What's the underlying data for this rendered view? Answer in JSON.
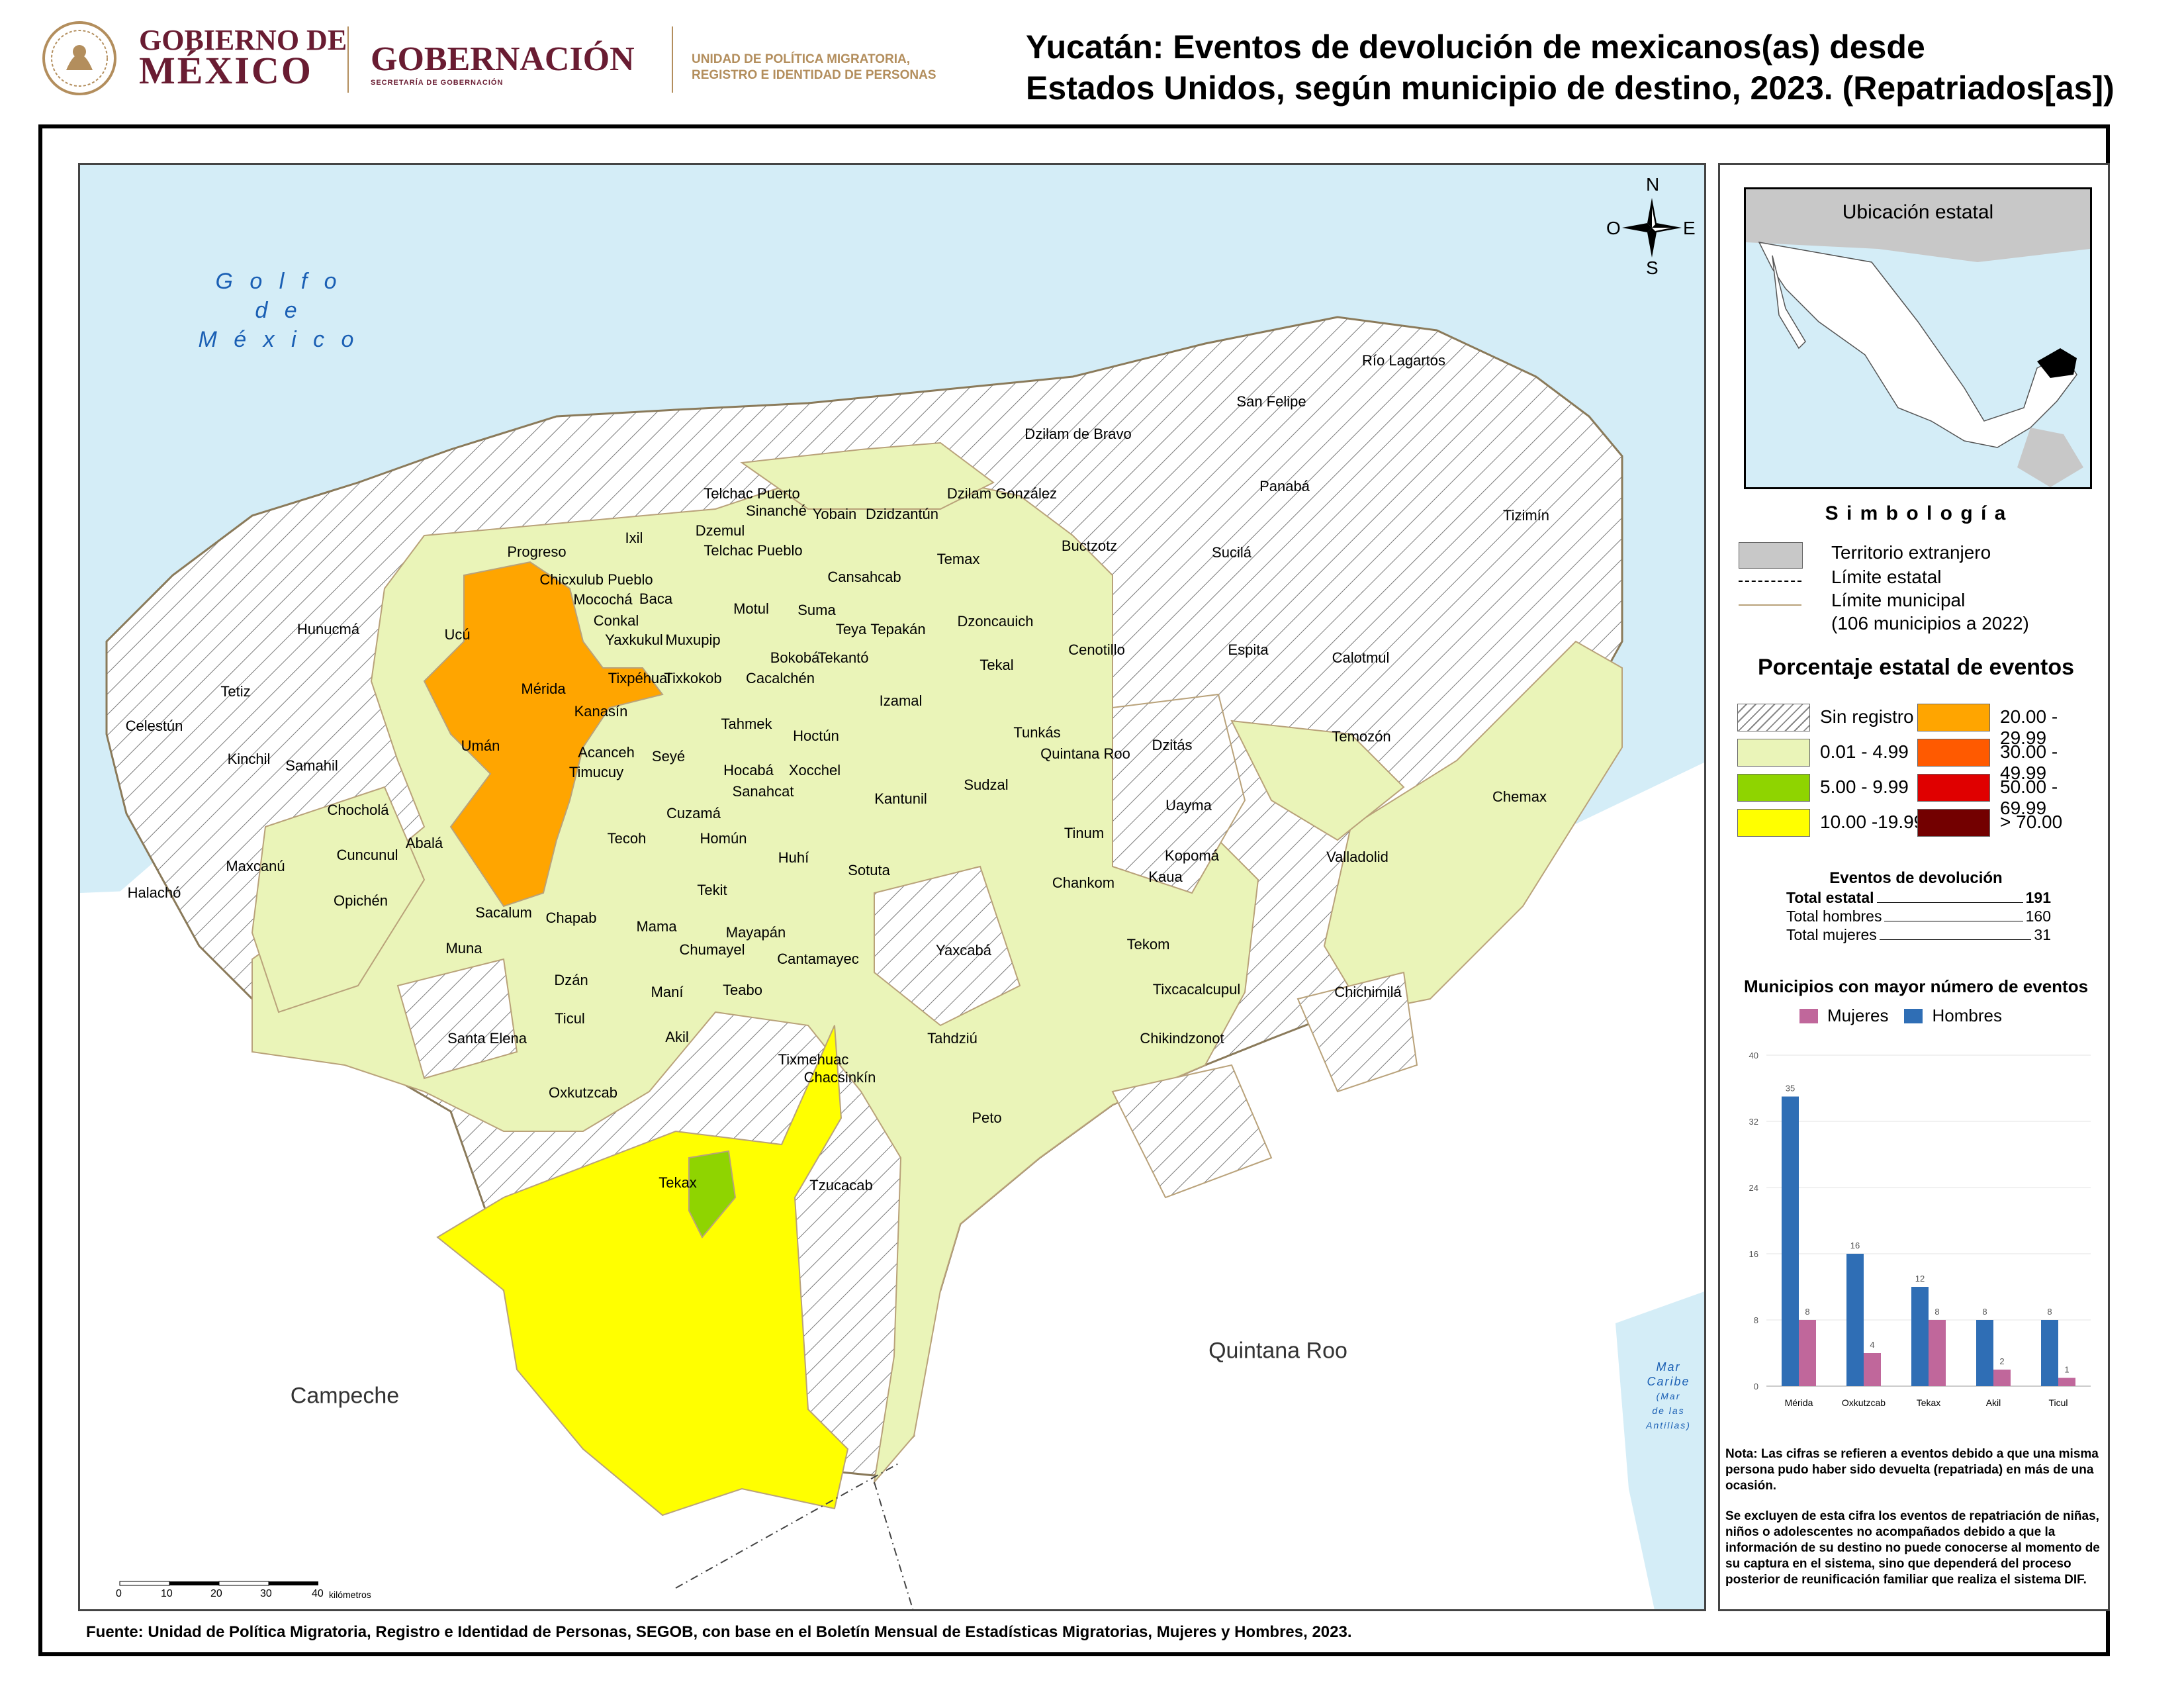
{
  "header": {
    "gov_line1": "GOBIERNO DE",
    "gov_line2": "MÉXICO",
    "secretaria": "GOBERNACIÓN",
    "secretaria_sub": "SECRETARÍA DE GOBERNACIÓN",
    "unidad_line1": "UNIDAD DE POLÍTICA MIGRATORIA,",
    "unidad_line2": "REGISTRO E IDENTIDAD DE PERSONAS",
    "title_line1": "Yucatán: Eventos de devolución de mexicanos(as) desde",
    "title_line2": "Estados Unidos, según municipio de destino, 2023. (Repatriados[as])"
  },
  "map": {
    "sea_label": [
      "G o l f o",
      "d e",
      "M é x i c o"
    ],
    "caribe_label": [
      "Mar",
      "Caribe",
      "(Mar",
      "de las",
      "Antillas)"
    ],
    "regions": [
      "Campeche",
      "Quintana Roo"
    ],
    "compass": {
      "n": "N",
      "s": "S",
      "e": "E",
      "w": "O"
    },
    "scale": {
      "ticks": [
        "0",
        "10",
        "20",
        "30",
        "40"
      ],
      "unit": "kilómetros"
    },
    "municipios": [
      "Río Lagartos",
      "San Felipe",
      "Dzilam de Bravo",
      "Panabá",
      "Telchac Puerto",
      "Sinanché",
      "Dzilam González",
      "Yobain",
      "Dzidzantún",
      "Tizimín",
      "Progreso",
      "Ixil",
      "Dzemul",
      "Telchac Pueblo",
      "Buctzotz",
      "Sucilá",
      "Temax",
      "Chicxulub Pueblo",
      "Cansahcab",
      "Mocochá",
      "Baca",
      "Motul",
      "Suma",
      "Hunucmá",
      "Ucú",
      "Conkal",
      "Teya",
      "Tepakán",
      "Dzoncauich",
      "Yaxkukul",
      "Muxupip",
      "Cenotillo",
      "Espita",
      "Calotmul",
      "Tixpéhual",
      "Bokobá",
      "Tekantó",
      "Tetiz",
      "Mérida",
      "Tixkokob",
      "Cacalchén",
      "Tekal",
      "Izamal",
      "Kanasín",
      "Celestún",
      "Tahmek",
      "Hoctún",
      "Tunkás",
      "Temozón",
      "Umán",
      "Dzitás",
      "Quintana Roo",
      "Kinchil",
      "Samahil",
      "Acanceh",
      "Seyé",
      "Timucuy",
      "Hocabá",
      "Xocchel",
      "Sanahcat",
      "Sudzal",
      "Chemax",
      "Chocholá",
      "Cuzamá",
      "Kantunil",
      "Uayma",
      "Abalá",
      "Tecoh",
      "Homún",
      "Huhí",
      "Tinum",
      "Kopomá",
      "Cuncunul",
      "Maxcanú",
      "Sotuta",
      "Valladolid",
      "Opichén",
      "Tekit",
      "Chankom",
      "Kaua",
      "Halachó",
      "Sacalum",
      "Chapab",
      "Mama",
      "Mayapán",
      "Muna",
      "Chumayel",
      "Yaxcabá",
      "Tekom",
      "Cantamayec",
      "Dzán",
      "Teabo",
      "Tixcacalcupul",
      "Chichimilá",
      "Maní",
      "Ticul",
      "Santa Elena",
      "Akil",
      "Chikindzonot",
      "Tahdziú",
      "Tixmehuac",
      "Chacsinkín",
      "Oxkutzcab",
      "Peto",
      "Tekax",
      "Tzucacab"
    ]
  },
  "inset": {
    "title": "Ubicación estatal"
  },
  "legend": {
    "title": "S i m b o l o g í a",
    "items": [
      {
        "label": "Territorio extranjero",
        "color": "#c8c8c8"
      },
      {
        "label": "Límite estatal"
      },
      {
        "label": "Límite municipal"
      },
      {
        "label": "(106 municipios a 2022)"
      }
    ],
    "pct_title": "Porcentaje estatal de eventos",
    "classes": [
      {
        "label": "Sin registro",
        "color": "hatch"
      },
      {
        "label": "0.01  - 4.99",
        "color": "#eaf4b8"
      },
      {
        "label": "5.00  - 9.99",
        "color": "#8fd400"
      },
      {
        "label": "10.00 -19.99",
        "color": "#ffff00"
      },
      {
        "label": "20.00 - 29.99",
        "color": "#ffa500"
      },
      {
        "label": "30.00 - 49.99",
        "color": "#ff5a00"
      },
      {
        "label": "50.00 - 69.99",
        "color": "#e00000"
      },
      {
        "label": "> 70.00",
        "color": "#730000"
      }
    ]
  },
  "eventos": {
    "title": "Eventos de devolución",
    "total_label": "Total estatal",
    "total_value": "191",
    "hombres_label": "Total hombres",
    "hombres_value": "160",
    "mujeres_label": "Total mujeres",
    "mujeres_value": "31"
  },
  "chart_data": {
    "type": "bar",
    "title": "Municipios con mayor número de eventos",
    "categories": [
      "Mérida",
      "Oxkutzcab",
      "Tekax",
      "Akil",
      "Ticul"
    ],
    "series": [
      {
        "name": "Hombres",
        "color": "#2f6eb5",
        "values": [
          35,
          16,
          12,
          8,
          8
        ]
      },
      {
        "name": "Mujeres",
        "color": "#c0679b",
        "values": [
          8,
          4,
          8,
          2,
          1
        ]
      }
    ],
    "legend_order": [
      "Mujeres",
      "Hombres"
    ],
    "yticks": [
      "0",
      "8",
      "16",
      "24",
      "32",
      "40"
    ],
    "ylim": [
      0,
      40
    ]
  },
  "notes": {
    "nota": "Nota: Las cifras se refieren a eventos debido a que una misma persona pudo haber sido devuelta (repatriada) en más de una ocasión.",
    "excluye": "Se excluyen de esta cifra los eventos de repatriación de niñas, niños o adolescentes no acompañados debido a que la información de su destino no puede conocerse al momento de su captura en el sistema, sino que dependerá del proceso posterior de reunificación familiar que realiza el sistema DIF."
  },
  "source": "Fuente: Unidad de Política Migratoria, Registro e Identidad de Personas, SEGOB, con base en el Boletín Mensual de Estadísticas Migratorias, Mujeres y Hombres, 2023."
}
